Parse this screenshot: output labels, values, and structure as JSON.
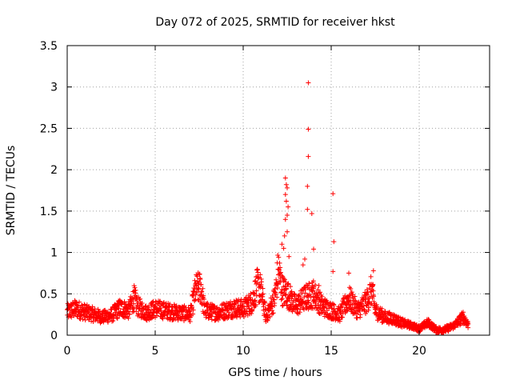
{
  "chart_data": {
    "type": "scatter",
    "title": "Day 072 of 2025, SRMTID for receiver hkst",
    "xlabel": "GPS time / hours",
    "ylabel": "SRMTID / TECUs",
    "xlim": [
      0,
      24
    ],
    "ylim": [
      0,
      3.5
    ],
    "grid": true,
    "marker": "+",
    "marker_color": "#ff0000",
    "x_ticks": [
      0,
      5,
      10,
      15,
      20
    ],
    "x_tick_labels": [
      "0",
      "5",
      "10",
      "15",
      "20"
    ],
    "y_ticks": [
      0,
      0.5,
      1,
      1.5,
      2,
      2.5,
      3,
      3.5
    ],
    "y_tick_labels": [
      "0",
      "0.5",
      "1",
      "1.5",
      "2",
      "2.5",
      "3",
      "3.5"
    ],
    "series": [
      {
        "name": "hkst",
        "baseline_profile": [
          [
            0.0,
            0.28
          ],
          [
            0.5,
            0.32
          ],
          [
            1.0,
            0.28
          ],
          [
            1.5,
            0.25
          ],
          [
            2.0,
            0.22
          ],
          [
            2.5,
            0.24
          ],
          [
            3.0,
            0.33
          ],
          [
            3.5,
            0.3
          ],
          [
            3.8,
            0.45
          ],
          [
            4.0,
            0.35
          ],
          [
            4.5,
            0.27
          ],
          [
            5.0,
            0.32
          ],
          [
            5.5,
            0.3
          ],
          [
            6.0,
            0.28
          ],
          [
            6.5,
            0.27
          ],
          [
            7.0,
            0.25
          ],
          [
            7.3,
            0.55
          ],
          [
            7.6,
            0.58
          ],
          [
            7.8,
            0.3
          ],
          [
            8.5,
            0.27
          ],
          [
            9.0,
            0.3
          ],
          [
            9.5,
            0.33
          ],
          [
            10.0,
            0.32
          ],
          [
            10.5,
            0.4
          ],
          [
            10.8,
            0.6
          ],
          [
            11.0,
            0.55
          ],
          [
            11.3,
            0.22
          ],
          [
            11.8,
            0.45
          ],
          [
            12.0,
            0.8
          ],
          [
            12.2,
            0.55
          ],
          [
            12.5,
            0.5
          ],
          [
            13.0,
            0.35
          ],
          [
            13.5,
            0.45
          ],
          [
            14.0,
            0.5
          ],
          [
            14.5,
            0.35
          ],
          [
            15.0,
            0.3
          ],
          [
            15.5,
            0.25
          ],
          [
            16.0,
            0.45
          ],
          [
            16.5,
            0.3
          ],
          [
            17.0,
            0.4
          ],
          [
            17.3,
            0.55
          ],
          [
            17.5,
            0.3
          ],
          [
            18.0,
            0.22
          ],
          [
            18.5,
            0.2
          ],
          [
            19.0,
            0.15
          ],
          [
            19.5,
            0.12
          ],
          [
            20.0,
            0.08
          ],
          [
            20.5,
            0.15
          ],
          [
            21.0,
            0.06
          ],
          [
            21.5,
            0.07
          ],
          [
            22.0,
            0.12
          ],
          [
            22.5,
            0.22
          ],
          [
            22.8,
            0.12
          ]
        ],
        "spike_points": [
          [
            12.4,
            1.9
          ],
          [
            12.45,
            1.82
          ],
          [
            12.5,
            1.78
          ],
          [
            12.4,
            1.7
          ],
          [
            12.45,
            1.62
          ],
          [
            12.4,
            1.4
          ],
          [
            12.35,
            1.2
          ],
          [
            12.3,
            1.05
          ],
          [
            12.2,
            1.1
          ],
          [
            12.5,
            1.45
          ],
          [
            12.5,
            1.25
          ],
          [
            12.55,
            1.55
          ],
          [
            12.6,
            0.95
          ],
          [
            13.7,
            3.05
          ],
          [
            13.7,
            2.49
          ],
          [
            13.7,
            2.16
          ],
          [
            13.65,
            1.8
          ],
          [
            13.65,
            1.52
          ],
          [
            13.9,
            1.47
          ],
          [
            14.0,
            1.04
          ],
          [
            15.1,
            1.71
          ],
          [
            15.15,
            1.13
          ],
          [
            13.5,
            0.92
          ],
          [
            13.4,
            0.85
          ],
          [
            15.1,
            0.77
          ],
          [
            14.3,
            0.6
          ],
          [
            17.4,
            0.78
          ],
          [
            16.0,
            0.75
          ]
        ]
      }
    ]
  }
}
